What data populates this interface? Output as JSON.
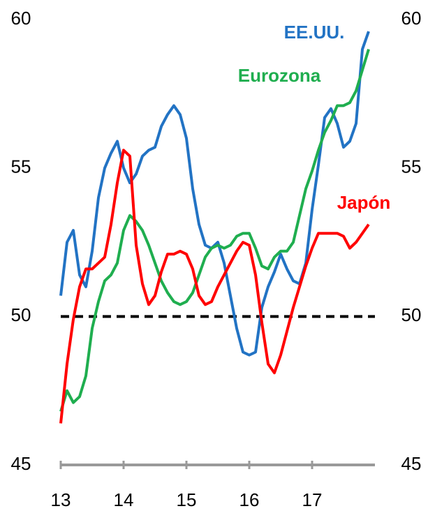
{
  "chart_data": {
    "type": "line",
    "x": [
      13.0,
      13.1,
      13.2,
      13.3,
      13.4,
      13.5,
      13.6,
      13.7,
      13.8,
      13.9,
      14.0,
      14.1,
      14.2,
      14.3,
      14.4,
      14.5,
      14.6,
      14.7,
      14.8,
      14.9,
      15.0,
      15.1,
      15.2,
      15.3,
      15.4,
      15.5,
      15.6,
      15.7,
      15.8,
      15.9,
      16.0,
      16.1,
      16.2,
      16.3,
      16.4,
      16.5,
      16.6,
      16.7,
      16.8,
      16.9,
      17.0,
      17.1,
      17.2,
      17.3,
      17.4,
      17.5,
      17.6,
      17.7,
      17.8,
      17.9
    ],
    "series": [
      {
        "name": "EE.UU.",
        "color": "#2273c4",
        "values": [
          50.7,
          52.5,
          52.9,
          51.4,
          51.0,
          52.2,
          54.0,
          55.0,
          55.5,
          55.9,
          55.0,
          54.5,
          54.8,
          55.4,
          55.6,
          55.7,
          56.4,
          56.8,
          57.1,
          56.8,
          56.0,
          54.3,
          53.1,
          52.4,
          52.3,
          52.5,
          51.8,
          50.7,
          49.6,
          48.8,
          48.7,
          48.8,
          50.3,
          51.0,
          51.5,
          52.1,
          51.6,
          51.2,
          51.1,
          51.8,
          53.6,
          55.1,
          56.7,
          57.0,
          56.5,
          55.7,
          55.9,
          56.5,
          59.0,
          59.6
        ]
      },
      {
        "name": "Eurozona",
        "color": "#1fae4f",
        "values": [
          46.8,
          47.5,
          47.1,
          47.3,
          48.0,
          49.6,
          50.5,
          51.2,
          51.4,
          51.8,
          52.9,
          53.4,
          53.2,
          52.9,
          52.4,
          51.8,
          51.2,
          50.8,
          50.5,
          50.4,
          50.5,
          50.8,
          51.4,
          52.0,
          52.3,
          52.4,
          52.3,
          52.4,
          52.7,
          52.8,
          52.8,
          52.3,
          51.7,
          51.6,
          52.0,
          52.2,
          52.2,
          52.5,
          53.4,
          54.3,
          54.9,
          55.6,
          56.2,
          56.6,
          57.1,
          57.1,
          57.2,
          57.6,
          58.3,
          59.0
        ]
      },
      {
        "name": "Japón",
        "color": "#ff0000",
        "values": [
          46.4,
          48.4,
          49.9,
          51.0,
          51.6,
          51.6,
          51.8,
          52.0,
          53.1,
          54.5,
          55.6,
          55.4,
          52.4,
          51.1,
          50.4,
          50.7,
          51.5,
          52.1,
          52.1,
          52.2,
          52.1,
          51.6,
          50.7,
          50.4,
          50.5,
          51.0,
          51.4,
          51.8,
          52.2,
          52.5,
          52.4,
          51.4,
          49.8,
          48.4,
          48.1,
          48.7,
          49.5,
          50.3,
          51.0,
          51.7,
          52.3,
          52.8,
          52.8,
          52.8,
          52.8,
          52.7,
          52.3,
          52.5,
          52.8,
          53.1
        ]
      }
    ],
    "xlim": [
      13,
      18
    ],
    "xticks": [
      13,
      14,
      15,
      16,
      17
    ],
    "ylim": [
      45,
      60
    ],
    "yticks": [
      45,
      50,
      55,
      60
    ],
    "y2lim": [
      45,
      60
    ],
    "y2ticks": [
      45,
      50,
      55,
      60
    ],
    "hline": 50
  }
}
